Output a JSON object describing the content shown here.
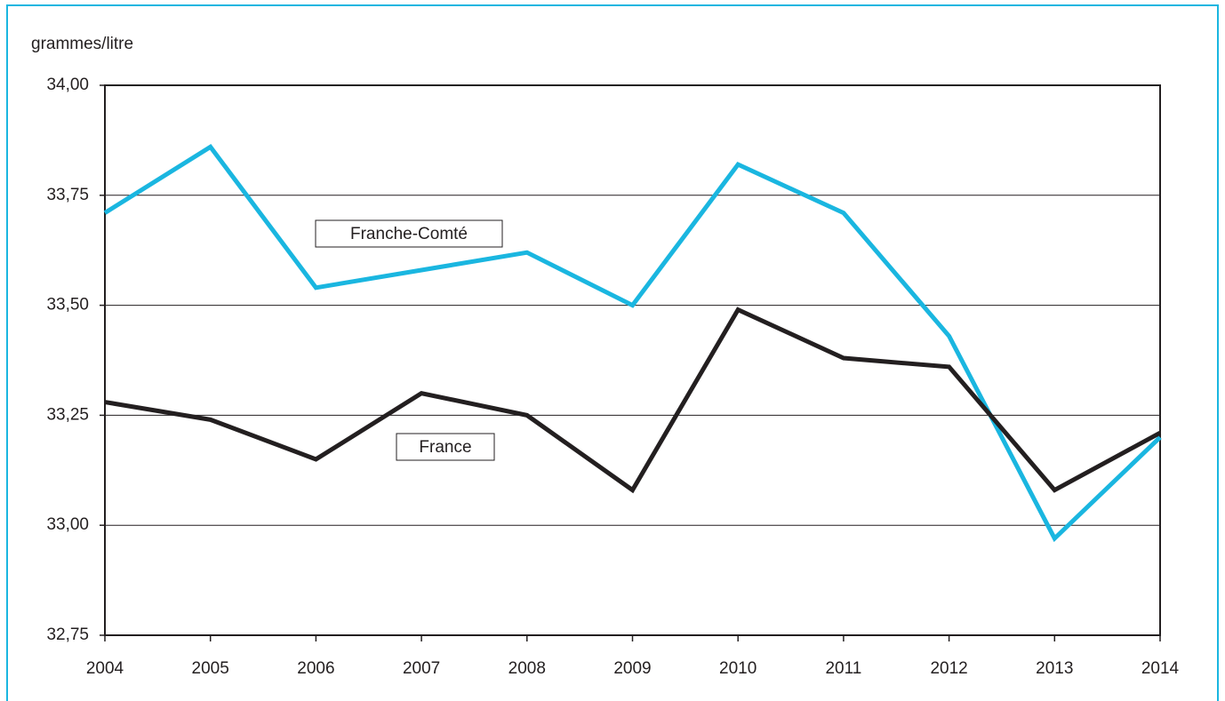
{
  "chart_data": {
    "type": "line",
    "y_label": "grammes/litre",
    "x": [
      2004,
      2005,
      2006,
      2007,
      2008,
      2009,
      2010,
      2011,
      2012,
      2013,
      2014
    ],
    "xlim": [
      2004,
      2014
    ],
    "xticks": [
      2004,
      2005,
      2006,
      2007,
      2008,
      2009,
      2010,
      2011,
      2012,
      2013,
      2014
    ],
    "ylim": [
      32.75,
      34.0
    ],
    "yticks": [
      {
        "value": 32.75,
        "label": "32,75"
      },
      {
        "value": 33.0,
        "label": "33,00"
      },
      {
        "value": 33.25,
        "label": "33,25"
      },
      {
        "value": 33.5,
        "label": "33,50"
      },
      {
        "value": 33.75,
        "label": "33,75"
      },
      {
        "value": 34.0,
        "label": "34,00"
      }
    ],
    "grid": true,
    "series": [
      {
        "name": "Franche-Comté",
        "color": "#1ab6e0",
        "values": [
          33.71,
          33.86,
          33.54,
          33.58,
          33.62,
          33.5,
          33.82,
          33.71,
          33.43,
          32.97,
          33.2
        ]
      },
      {
        "name": "France",
        "color": "#231f20",
        "values": [
          33.28,
          33.24,
          33.15,
          33.3,
          33.25,
          33.08,
          33.49,
          33.38,
          33.36,
          33.08,
          33.21
        ]
      }
    ]
  }
}
